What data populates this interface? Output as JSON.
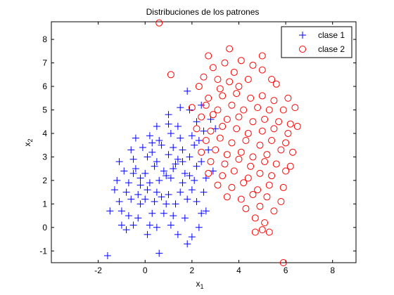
{
  "chart_data": {
    "type": "scatter",
    "title": "Distribuciones de los patrones",
    "xlabel": "x",
    "xlabel_sub": "1",
    "ylabel": "x",
    "ylabel_sub": "2",
    "xlim": [
      -4,
      9
    ],
    "ylim": [
      -1.5,
      8.75
    ],
    "xticks": [
      -2,
      0,
      2,
      4,
      6,
      8
    ],
    "yticks": [
      -1,
      0,
      1,
      2,
      3,
      4,
      5,
      6,
      7,
      8
    ],
    "grid": false,
    "legend_position": "top-right",
    "series": [
      {
        "name": "clase 1",
        "marker": "plus",
        "color": "#0000ff",
        "points": [
          [
            -1.6,
            -1.2
          ],
          [
            0.6,
            -1.1
          ],
          [
            1.8,
            -0.7
          ],
          [
            0.1,
            -0.3
          ],
          [
            1.4,
            -0.3
          ],
          [
            2.0,
            -0.4
          ],
          [
            -1.0,
            0.1
          ],
          [
            -0.8,
            -0.1
          ],
          [
            -0.5,
            0.1
          ],
          [
            0.2,
            0.1
          ],
          [
            0.5,
            0.0
          ],
          [
            1.1,
            0.1
          ],
          [
            2.3,
            0.0
          ],
          [
            -1.5,
            0.7
          ],
          [
            -1.0,
            0.7
          ],
          [
            -0.7,
            0.5
          ],
          [
            -0.3,
            0.4
          ],
          [
            0.3,
            0.6
          ],
          [
            0.8,
            0.6
          ],
          [
            1.2,
            0.5
          ],
          [
            1.7,
            0.4
          ],
          [
            2.4,
            0.6
          ],
          [
            2.6,
            0.7
          ],
          [
            -1.1,
            1.1
          ],
          [
            -0.6,
            1.2
          ],
          [
            -0.2,
            1.0
          ],
          [
            0.4,
            1.1
          ],
          [
            0.9,
            1.0
          ],
          [
            1.3,
            1.0
          ],
          [
            1.8,
            1.2
          ],
          [
            2.2,
            1.1
          ],
          [
            -1.3,
            1.6
          ],
          [
            -0.8,
            1.5
          ],
          [
            -0.3,
            1.4
          ],
          [
            0.1,
            1.6
          ],
          [
            0.5,
            1.5
          ],
          [
            1.0,
            1.4
          ],
          [
            1.5,
            1.5
          ],
          [
            2.0,
            1.6
          ],
          [
            2.5,
            1.5
          ],
          [
            -1.2,
            2.0
          ],
          [
            -0.7,
            1.9
          ],
          [
            -0.2,
            2.1
          ],
          [
            0.2,
            1.9
          ],
          [
            0.6,
            2.0
          ],
          [
            1.1,
            2.1
          ],
          [
            1.6,
            1.9
          ],
          [
            2.1,
            2.0
          ],
          [
            2.6,
            2.1
          ],
          [
            -0.9,
            2.4
          ],
          [
            -0.4,
            2.5
          ],
          [
            0.0,
            2.3
          ],
          [
            0.4,
            2.6
          ],
          [
            0.8,
            2.4
          ],
          [
            1.2,
            2.5
          ],
          [
            1.7,
            2.3
          ],
          [
            2.2,
            2.6
          ],
          [
            2.9,
            2.4
          ],
          [
            -1.1,
            2.8
          ],
          [
            -0.5,
            2.9
          ],
          [
            0.1,
            3.0
          ],
          [
            0.5,
            2.8
          ],
          [
            1.0,
            3.1
          ],
          [
            1.4,
            2.9
          ],
          [
            1.9,
            3.0
          ],
          [
            2.4,
            2.8
          ],
          [
            -0.6,
            3.3
          ],
          [
            -0.1,
            3.4
          ],
          [
            0.3,
            3.2
          ],
          [
            0.7,
            3.5
          ],
          [
            1.2,
            3.4
          ],
          [
            1.6,
            3.3
          ],
          [
            2.1,
            3.5
          ],
          [
            2.7,
            3.3
          ],
          [
            -0.4,
            3.8
          ],
          [
            0.2,
            3.9
          ],
          [
            0.6,
            3.7
          ],
          [
            1.1,
            4.0
          ],
          [
            1.5,
            3.8
          ],
          [
            2.0,
            3.9
          ],
          [
            2.5,
            4.1
          ],
          [
            3.0,
            4.2
          ],
          [
            0.5,
            4.3
          ],
          [
            1.0,
            4.4
          ],
          [
            1.4,
            4.3
          ],
          [
            2.2,
            4.5
          ],
          [
            2.8,
            4.6
          ],
          [
            1.9,
            5.0
          ],
          [
            1.0,
            4.8
          ],
          [
            2.4,
            5.2
          ],
          [
            1.8,
            5.8
          ],
          [
            1.5,
            5.1
          ],
          [
            0.9,
            2.2
          ],
          [
            1.3,
            2.7
          ],
          [
            -0.2,
            1.8
          ],
          [
            0.7,
            1.3
          ],
          [
            1.6,
            2.8
          ],
          [
            0.3,
            3.6
          ],
          [
            2.3,
            3.7
          ],
          [
            1.9,
            2.2
          ],
          [
            -0.5,
            2.3
          ],
          [
            0.0,
            1.2
          ]
        ]
      },
      {
        "name": "clase 2",
        "marker": "circle",
        "color": "#ff0000",
        "points": [
          [
            0.6,
            8.7
          ],
          [
            3.6,
            7.6
          ],
          [
            2.7,
            7.3
          ],
          [
            4.1,
            7.1
          ],
          [
            3.4,
            7.0
          ],
          [
            2.9,
            6.8
          ],
          [
            4.6,
            6.9
          ],
          [
            5.0,
            6.7
          ],
          [
            3.8,
            6.6
          ],
          [
            5.0,
            7.3
          ],
          [
            1.1,
            6.5
          ],
          [
            2.5,
            6.4
          ],
          [
            3.1,
            6.3
          ],
          [
            3.6,
            6.2
          ],
          [
            4.4,
            6.3
          ],
          [
            5.4,
            6.3
          ],
          [
            2.3,
            6.0
          ],
          [
            3.2,
            5.9
          ],
          [
            4.0,
            6.0
          ],
          [
            5.6,
            6.1
          ],
          [
            2.7,
            5.5
          ],
          [
            3.3,
            5.6
          ],
          [
            3.9,
            5.7
          ],
          [
            4.5,
            5.5
          ],
          [
            5.0,
            5.6
          ],
          [
            5.5,
            5.4
          ],
          [
            6.1,
            5.5
          ],
          [
            2.0,
            5.1
          ],
          [
            2.6,
            5.2
          ],
          [
            3.1,
            5.0
          ],
          [
            3.7,
            5.2
          ],
          [
            4.2,
            5.0
          ],
          [
            4.8,
            5.1
          ],
          [
            5.3,
            5.0
          ],
          [
            5.9,
            5.0
          ],
          [
            6.4,
            5.1
          ],
          [
            2.4,
            4.7
          ],
          [
            2.9,
            4.8
          ],
          [
            3.5,
            4.6
          ],
          [
            4.0,
            4.7
          ],
          [
            4.6,
            4.5
          ],
          [
            5.1,
            4.6
          ],
          [
            5.7,
            4.5
          ],
          [
            6.2,
            4.4
          ],
          [
            2.2,
            4.2
          ],
          [
            2.8,
            4.1
          ],
          [
            3.3,
            4.3
          ],
          [
            3.9,
            4.2
          ],
          [
            4.4,
            4.0
          ],
          [
            5.0,
            4.1
          ],
          [
            5.5,
            4.2
          ],
          [
            6.1,
            4.0
          ],
          [
            6.5,
            4.3
          ],
          [
            2.6,
            3.7
          ],
          [
            3.2,
            3.8
          ],
          [
            3.7,
            3.6
          ],
          [
            4.3,
            3.7
          ],
          [
            4.9,
            3.5
          ],
          [
            5.4,
            3.7
          ],
          [
            6.0,
            3.6
          ],
          [
            2.4,
            3.2
          ],
          [
            3.0,
            3.3
          ],
          [
            3.5,
            3.1
          ],
          [
            4.1,
            3.2
          ],
          [
            4.6,
            3.0
          ],
          [
            5.2,
            3.1
          ],
          [
            5.8,
            3.3
          ],
          [
            6.3,
            3.2
          ],
          [
            2.8,
            2.8
          ],
          [
            3.4,
            2.7
          ],
          [
            4.0,
            2.9
          ],
          [
            4.5,
            2.6
          ],
          [
            5.1,
            2.8
          ],
          [
            5.6,
            2.7
          ],
          [
            6.2,
            2.6
          ],
          [
            2.7,
            2.3
          ],
          [
            3.3,
            2.2
          ],
          [
            3.8,
            2.4
          ],
          [
            4.4,
            2.1
          ],
          [
            4.9,
            2.3
          ],
          [
            5.4,
            2.2
          ],
          [
            6.0,
            2.4
          ],
          [
            3.1,
            1.8
          ],
          [
            3.7,
            1.7
          ],
          [
            4.2,
            1.9
          ],
          [
            4.8,
            1.6
          ],
          [
            5.3,
            1.8
          ],
          [
            5.9,
            1.7
          ],
          [
            3.5,
            1.3
          ],
          [
            4.1,
            1.2
          ],
          [
            4.6,
            1.4
          ],
          [
            5.2,
            1.3
          ],
          [
            5.8,
            1.1
          ],
          [
            4.3,
            0.8
          ],
          [
            4.9,
            0.9
          ],
          [
            5.5,
            0.7
          ],
          [
            4.7,
            0.4
          ],
          [
            5.1,
            0.2
          ],
          [
            4.7,
            -0.2
          ],
          [
            5.0,
            -0.1
          ],
          [
            5.3,
            -0.2
          ],
          [
            5.9,
            -1.5
          ]
        ]
      }
    ]
  }
}
